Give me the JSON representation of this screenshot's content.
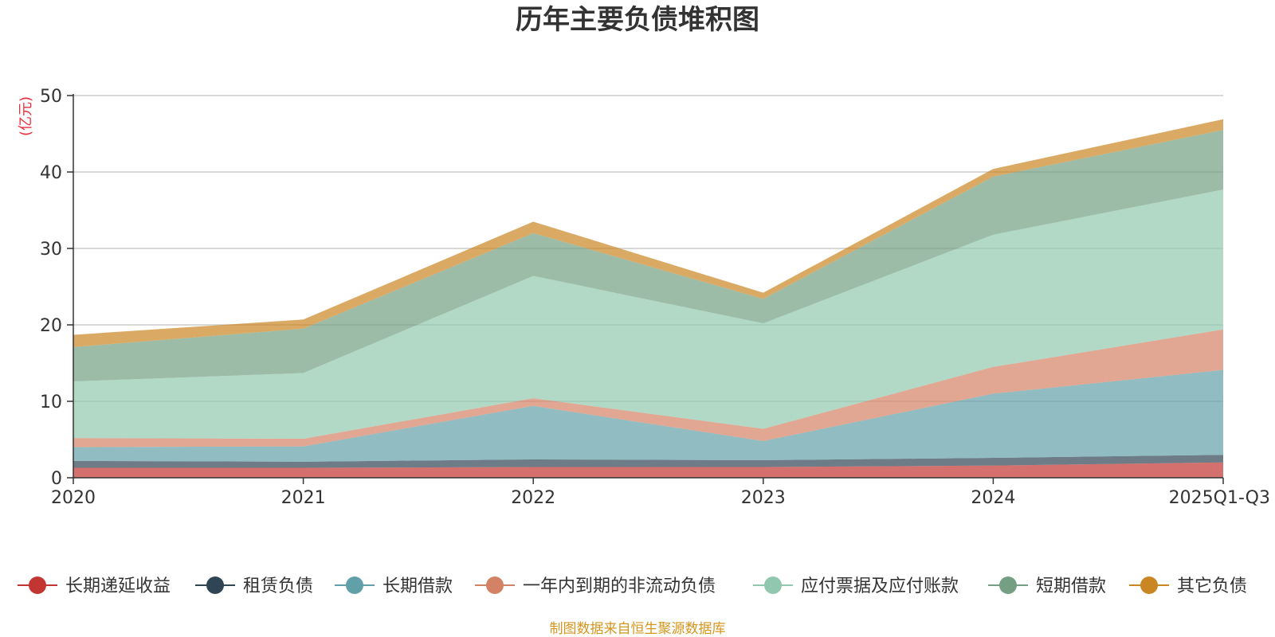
{
  "chart_data": {
    "type": "area",
    "stacked": true,
    "title": "历年主要负债堆积图",
    "ylabel": "(亿元)",
    "xlabel": "",
    "ylim": [
      0,
      50
    ],
    "yticks": [
      0,
      10,
      20,
      30,
      40,
      50
    ],
    "categories": [
      "2020",
      "2021",
      "2022",
      "2023",
      "2024",
      "2025Q1-Q3"
    ],
    "grid": true,
    "legend_position": "bottom",
    "series": [
      {
        "name": "长期递延收益",
        "color": "#c23531",
        "values": [
          1.3,
          1.3,
          1.4,
          1.4,
          1.6,
          2.0
        ]
      },
      {
        "name": "租赁负债",
        "color": "#2f4554",
        "values": [
          0.9,
          0.8,
          1.0,
          0.9,
          1.0,
          1.0
        ]
      },
      {
        "name": "长期借款",
        "color": "#61a0a8",
        "values": [
          1.8,
          2.0,
          7.0,
          2.5,
          8.4,
          11.1
        ]
      },
      {
        "name": "一年内到期的非流动负债",
        "color": "#d48265",
        "values": [
          1.2,
          1.0,
          1.0,
          1.6,
          3.5,
          5.3
        ]
      },
      {
        "name": "应付票据及应付账款",
        "color": "#91c7ae",
        "values": [
          7.4,
          8.6,
          16.0,
          13.8,
          17.3,
          18.3
        ]
      },
      {
        "name": "短期借款",
        "color": "#749f83",
        "values": [
          4.5,
          5.8,
          5.6,
          3.2,
          7.6,
          7.8
        ]
      },
      {
        "name": "其它负债",
        "color": "#ca8622",
        "values": [
          1.6,
          1.2,
          1.5,
          0.8,
          1.0,
          1.4
        ]
      }
    ],
    "source_note": "制图数据来自恒生聚源数据库"
  }
}
